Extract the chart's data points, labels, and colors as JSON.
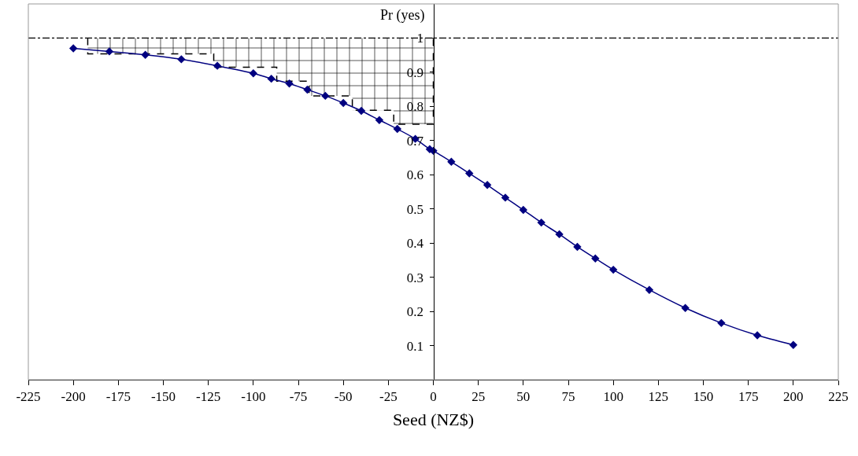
{
  "chart_data": {
    "type": "line",
    "xlabel": "Seed (NZ$)",
    "ylabel": "Pr (yes)",
    "xlim": [
      -225,
      225
    ],
    "xticks": [
      -225,
      -200,
      -175,
      -150,
      -125,
      -100,
      -75,
      -50,
      -25,
      0,
      25,
      50,
      75,
      100,
      125,
      150,
      175,
      200,
      225
    ],
    "ylim": [
      0,
      1.1
    ],
    "yticks": [
      0.1,
      0.2,
      0.3,
      0.4,
      0.5,
      0.6,
      0.7,
      0.8,
      0.9,
      1
    ],
    "grid": false,
    "line_style": "solid",
    "series": [
      {
        "color": "#000080",
        "marker": "diamond",
        "x": [
          -200,
          -180,
          -160,
          -140,
          -120,
          -100,
          -90,
          -80,
          -70,
          -60,
          -50,
          -40,
          -30,
          -20,
          -10,
          -2,
          0,
          10,
          20,
          30,
          40,
          50,
          60,
          70,
          80,
          90,
          100,
          120,
          140,
          160,
          180,
          200
        ],
        "values": [
          0.97,
          0.961,
          0.951,
          0.938,
          0.919,
          0.897,
          0.881,
          0.867,
          0.849,
          0.831,
          0.81,
          0.787,
          0.76,
          0.734,
          0.705,
          0.675,
          0.67,
          0.638,
          0.604,
          0.57,
          0.533,
          0.497,
          0.46,
          0.426,
          0.389,
          0.355,
          0.322,
          0.263,
          0.21,
          0.166,
          0.13,
          0.102
        ]
      },
      {
        "type": "area",
        "color": "#000000",
        "line_style": "dashed",
        "marker": "none",
        "x": [
          -192,
          -192,
          -122,
          -122,
          -87,
          -87,
          -69,
          -69,
          -45,
          -45,
          -22,
          -22,
          0,
          0
        ],
        "values": [
          1,
          0.954,
          0.954,
          0.915,
          0.915,
          0.874,
          0.874,
          0.831,
          0.831,
          0.789,
          0.789,
          0.748,
          0.748,
          1
        ]
      }
    ],
    "ref_lines": [
      {
        "axis": "y",
        "value": 1,
        "color": "#000000",
        "line_style": "dashdot"
      }
    ]
  }
}
